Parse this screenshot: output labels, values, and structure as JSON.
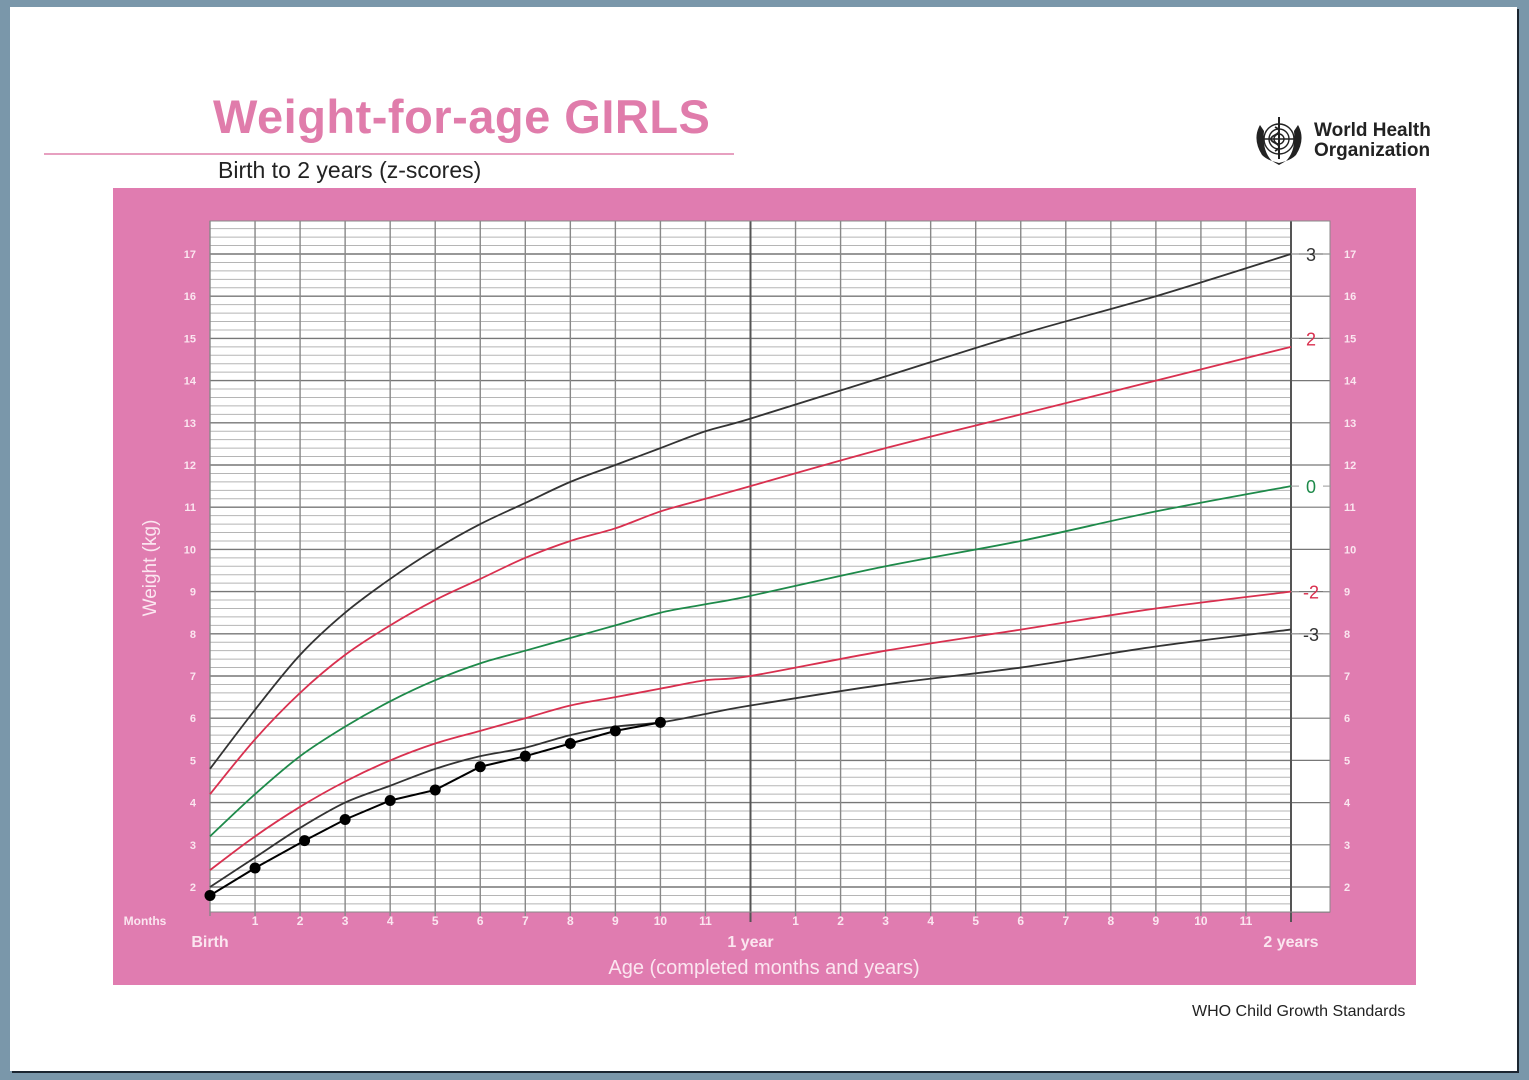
{
  "header": {
    "title": "Weight-for-age GIRLS",
    "subtitle": "Birth to 2 years (z-scores)",
    "org_line1": "World Health",
    "org_line2": "Organization",
    "logo_icon": "who-emblem-icon"
  },
  "footer": {
    "source": "WHO Child Growth Standards"
  },
  "colors": {
    "brand_pink": "#e07cab",
    "panel_pink": "#e07cb0",
    "sd3": "#333333",
    "sd2": "#d9304f",
    "sd0": "#1e8a4a",
    "sd_neg2": "#d9304f",
    "sd_neg3": "#333333",
    "child": "#000000",
    "background": "#7a97aa"
  },
  "chart_data": {
    "type": "line",
    "title": "Weight-for-age GIRLS",
    "subtitle": "Birth to 2 years (z-scores)",
    "xlabel": "Age (completed months and years)",
    "ylabel": "Weight (kg)",
    "x_unit_label": "Months",
    "xlim": [
      0,
      24
    ],
    "ylim": [
      1.4,
      17.8
    ],
    "grid": true,
    "y_ticks": [
      2,
      3,
      4,
      5,
      6,
      7,
      8,
      9,
      10,
      11,
      12,
      13,
      14,
      15,
      16,
      17
    ],
    "x_ticks_first_year": [
      "1",
      "2",
      "3",
      "4",
      "5",
      "6",
      "7",
      "8",
      "9",
      "10",
      "11"
    ],
    "x_ticks_second_year": [
      "1",
      "2",
      "3",
      "4",
      "5",
      "6",
      "7",
      "8",
      "9",
      "10",
      "11"
    ],
    "x_major_labels": [
      {
        "month": 0,
        "label": "Birth"
      },
      {
        "month": 12,
        "label": "1 year"
      },
      {
        "month": 24,
        "label": "2 years"
      }
    ],
    "x": [
      0,
      1,
      2,
      3,
      4,
      5,
      6,
      7,
      8,
      9,
      10,
      11,
      12,
      15,
      18,
      21,
      24
    ],
    "series": [
      {
        "name": "3",
        "label_value": 17.0,
        "color": "#333333",
        "values": [
          4.8,
          6.2,
          7.5,
          8.5,
          9.3,
          10.0,
          10.6,
          11.1,
          11.6,
          12.0,
          12.4,
          12.8,
          13.1,
          14.1,
          15.1,
          16.0,
          17.0
        ]
      },
      {
        "name": "2",
        "label_value": 15.0,
        "color": "#d9304f",
        "values": [
          4.2,
          5.5,
          6.6,
          7.5,
          8.2,
          8.8,
          9.3,
          9.8,
          10.2,
          10.5,
          10.9,
          11.2,
          11.5,
          12.4,
          13.2,
          14.0,
          14.8
        ]
      },
      {
        "name": "0",
        "label_value": 11.5,
        "color": "#1e8a4a",
        "values": [
          3.2,
          4.2,
          5.1,
          5.8,
          6.4,
          6.9,
          7.3,
          7.6,
          7.9,
          8.2,
          8.5,
          8.7,
          8.9,
          9.6,
          10.2,
          10.9,
          11.5
        ]
      },
      {
        "name": "-2",
        "label_value": 9.0,
        "color": "#d9304f",
        "values": [
          2.4,
          3.2,
          3.9,
          4.5,
          5.0,
          5.4,
          5.7,
          6.0,
          6.3,
          6.5,
          6.7,
          6.9,
          7.0,
          7.6,
          8.1,
          8.6,
          9.0
        ]
      },
      {
        "name": "-3",
        "label_value": 8.0,
        "color": "#333333",
        "values": [
          2.0,
          2.7,
          3.4,
          4.0,
          4.4,
          4.8,
          5.1,
          5.3,
          5.6,
          5.8,
          5.9,
          6.1,
          6.3,
          6.8,
          7.2,
          7.7,
          8.1
        ]
      }
    ],
    "child_measurements": {
      "name": "Child weight",
      "color": "#000000",
      "x": [
        0,
        1,
        2.1,
        3,
        4,
        5,
        6,
        7,
        8,
        9,
        10
      ],
      "values": [
        1.8,
        2.45,
        3.1,
        3.6,
        4.05,
        4.3,
        4.85,
        5.1,
        5.4,
        5.7,
        5.9
      ]
    }
  }
}
